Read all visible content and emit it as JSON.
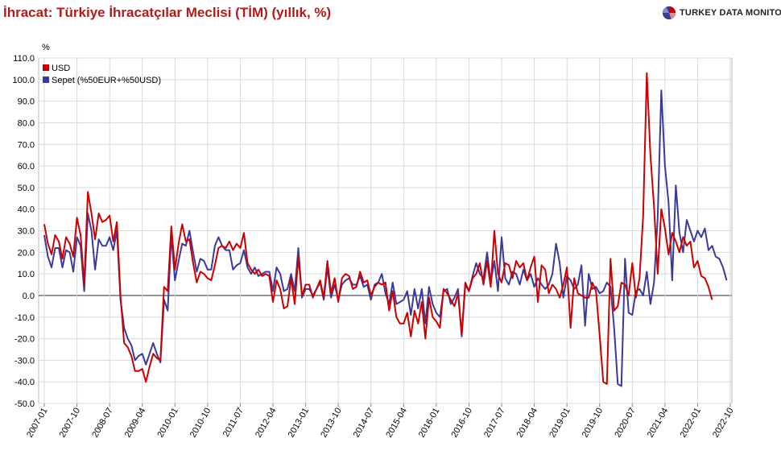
{
  "header": {
    "title": "İhracat: Türkiye İhracatçılar Meclisi (TİM) (yıllık, %)",
    "brand": "TURKEY DATA MONITOR",
    "brand_icon": "pie-chart-icon"
  },
  "colors": {
    "usd": "#cc0000",
    "sepet": "#3a3a9a",
    "title": "#b01c1c",
    "grid": "#d9d9d9",
    "zero_line": "#666666"
  },
  "chart_data": {
    "type": "line",
    "ylabel": "%",
    "ylim": [
      -50,
      110
    ],
    "yticks": [
      -50,
      -40,
      -30,
      -20,
      -10,
      0,
      10,
      20,
      30,
      40,
      50,
      60,
      70,
      80,
      90,
      100,
      110
    ],
    "ytick_labels": [
      "-50.0",
      "-40.0",
      "-30.0",
      "-20.0",
      "-10.0",
      "0.0",
      "10.0",
      "20.0",
      "30.0",
      "40.0",
      "50.0",
      "60.0",
      "70.0",
      "80.0",
      "90.0",
      "100.0",
      "110.0"
    ],
    "x_start": "2007-01",
    "x_end": "2022-10",
    "xtick_labels": [
      "2007-01",
      "2007-10",
      "2008-07",
      "2009-04",
      "2010-01",
      "2010-10",
      "2011-07",
      "2012-04",
      "2013-01",
      "2013-10",
      "2014-07",
      "2015-04",
      "2016-01",
      "2016-10",
      "2017-07",
      "2018-04",
      "2019-01",
      "2019-10",
      "2020-07",
      "2021-04",
      "2022-01",
      "2022-10"
    ],
    "grid": true,
    "legend_position": "top-left",
    "series": [
      {
        "name": "USD",
        "values": [
          33,
          24,
          19,
          28,
          25,
          17,
          27,
          24,
          18,
          36,
          28,
          5,
          48,
          38,
          26,
          38,
          34,
          35,
          37,
          25,
          34,
          0,
          -22,
          -24,
          -28,
          -35,
          -35,
          -34,
          -40,
          -33,
          -27,
          -29,
          -30,
          4,
          2,
          32,
          12,
          24,
          33,
          25,
          26,
          15,
          6,
          11,
          10,
          8,
          7,
          14,
          22,
          23,
          22,
          25,
          21,
          24,
          22,
          29,
          15,
          12,
          10,
          12,
          9,
          10,
          9,
          -3,
          7,
          3,
          -6,
          -5,
          8,
          -4,
          18,
          0,
          5,
          5,
          -1,
          3,
          7,
          -1,
          16,
          1,
          8,
          -3,
          8,
          10,
          9,
          3,
          4,
          11,
          6,
          7,
          0,
          4,
          6,
          5,
          6,
          -7,
          2,
          -10,
          -13,
          -13,
          -8,
          -19,
          -7,
          -13,
          -3,
          -20,
          -1,
          -10,
          -12,
          -15,
          3,
          1,
          -2,
          -5,
          1,
          -18,
          6,
          2,
          8,
          10,
          15,
          5,
          16,
          4,
          30,
          10,
          6,
          15,
          14,
          8,
          16,
          13,
          15,
          7,
          13,
          18,
          -3,
          14,
          12,
          1,
          5,
          3,
          -1,
          5,
          13,
          -15,
          8,
          1,
          0,
          -1,
          -1,
          6,
          2,
          -18,
          -40,
          -41,
          17,
          -7,
          -5,
          6,
          5,
          0,
          15,
          -1,
          8,
          37,
          103,
          65,
          41,
          10,
          40,
          31,
          19,
          29,
          25,
          20,
          27,
          23,
          25,
          13,
          16,
          9,
          8,
          4,
          -2
        ]
      },
      {
        "name": "Sepet (%50EUR+%50USD)",
        "values": [
          28,
          18,
          13,
          22,
          22,
          13,
          21,
          20,
          11,
          27,
          23,
          2,
          38,
          30,
          12,
          26,
          23,
          23,
          27,
          21,
          30,
          -2,
          -15,
          -20,
          -23,
          -30,
          -28,
          -27,
          -32,
          -27,
          -22,
          -27,
          -31,
          -2,
          -7,
          28,
          7,
          16,
          24,
          23,
          30,
          20,
          11,
          17,
          16,
          12,
          12,
          23,
          27,
          23,
          21,
          21,
          12,
          14,
          15,
          21,
          13,
          10,
          13,
          9,
          10,
          11,
          11,
          2,
          13,
          10,
          2,
          3,
          10,
          2,
          22,
          -1,
          3,
          3,
          0,
          3,
          6,
          -2,
          13,
          -1,
          5,
          -2,
          5,
          7,
          8,
          5,
          5,
          9,
          4,
          5,
          -2,
          5,
          6,
          10,
          1,
          -4,
          6,
          -4,
          -3,
          -2,
          2,
          -9,
          3,
          -6,
          3,
          -13,
          4,
          -4,
          -8,
          -10,
          2,
          3,
          -4,
          -1,
          3,
          -19,
          5,
          2,
          9,
          15,
          10,
          8,
          20,
          6,
          16,
          2,
          27,
          8,
          5,
          11,
          10,
          5,
          12,
          7,
          10,
          4,
          8,
          5,
          3,
          5,
          10,
          24,
          15,
          -1,
          9,
          7,
          3,
          5,
          14,
          -14,
          10,
          3,
          4,
          1,
          2,
          6,
          4,
          -15,
          -41,
          -42,
          17,
          -8,
          -9,
          2,
          3,
          0,
          11,
          -4,
          6,
          36,
          95,
          60,
          43,
          7,
          51,
          29,
          20,
          35,
          30,
          25,
          30,
          27,
          31,
          21,
          23,
          18,
          17,
          13,
          7
        ]
      }
    ]
  }
}
